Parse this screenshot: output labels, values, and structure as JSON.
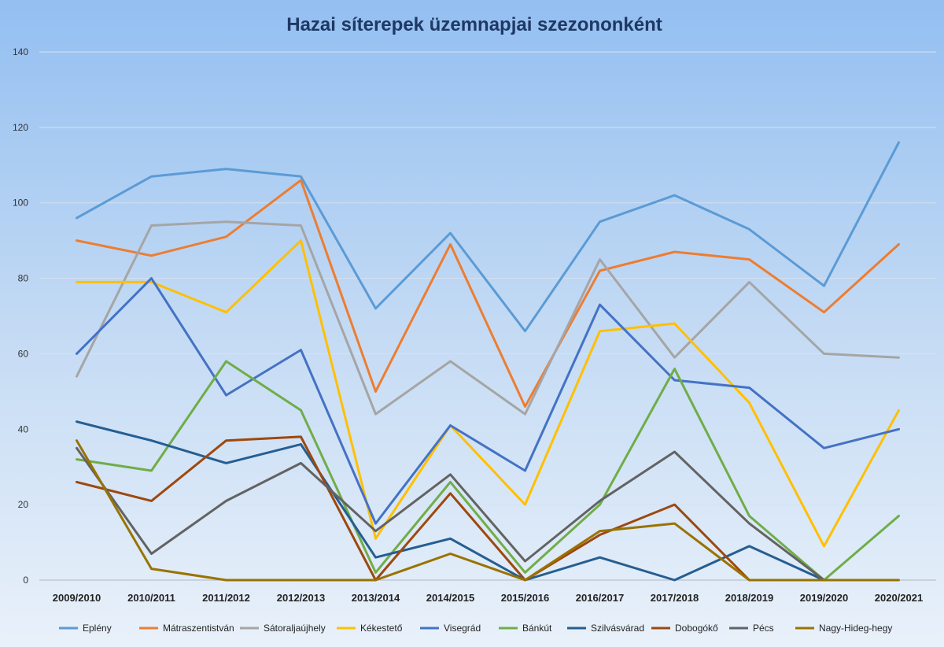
{
  "chart_data": {
    "type": "line",
    "title": "Hazai síterepek üzemnapjai szezononként",
    "xlabel": "",
    "ylabel": "",
    "ylim": [
      0,
      140
    ],
    "yticks": [
      0,
      20,
      40,
      60,
      80,
      100,
      120,
      140
    ],
    "grid": true,
    "legend_position": "bottom",
    "categories": [
      "2009/2010",
      "2010/2011",
      "2011/2012",
      "2012/2013",
      "2013/2014",
      "2014/2015",
      "2015/2016",
      "2016/2017",
      "2017/2018",
      "2018/2019",
      "2019/2020",
      "2020/2021"
    ],
    "series": [
      {
        "name": "Eplény",
        "color": "#5b9bd5",
        "values": [
          96,
          107,
          109,
          107,
          72,
          92,
          66,
          95,
          102,
          93,
          78,
          116
        ]
      },
      {
        "name": "Mátraszentistván",
        "color": "#ed7d31",
        "values": [
          90,
          86,
          91,
          106,
          50,
          89,
          46,
          82,
          87,
          85,
          71,
          89
        ]
      },
      {
        "name": "Sátoraljaújhely",
        "color": "#a5a5a5",
        "values": [
          54,
          94,
          95,
          94,
          44,
          58,
          44,
          85,
          59,
          79,
          60,
          59
        ]
      },
      {
        "name": "Kékestető",
        "color": "#ffc000",
        "values": [
          79,
          79,
          71,
          90,
          11,
          41,
          20,
          66,
          68,
          47,
          9,
          45
        ]
      },
      {
        "name": "Visegrád",
        "color": "#4472c4",
        "values": [
          60,
          80,
          49,
          61,
          15,
          41,
          29,
          73,
          53,
          51,
          35,
          40
        ]
      },
      {
        "name": "Bánkút",
        "color": "#70ad47",
        "values": [
          32,
          29,
          58,
          45,
          2,
          26,
          2,
          20,
          56,
          17,
          0,
          17
        ]
      },
      {
        "name": "Szilvásvárad",
        "color": "#255e91",
        "values": [
          42,
          37,
          31,
          36,
          6,
          11,
          0,
          6,
          0,
          9,
          0,
          null
        ]
      },
      {
        "name": "Dobogókő",
        "color": "#9e480e",
        "values": [
          26,
          21,
          37,
          38,
          0,
          23,
          0,
          12,
          20,
          0,
          null,
          null
        ]
      },
      {
        "name": "Pécs",
        "color": "#636363",
        "values": [
          35,
          7,
          21,
          31,
          13,
          28,
          5,
          21,
          34,
          15,
          0,
          null
        ]
      },
      {
        "name": "Nagy-Hideg-hegy",
        "color": "#997300",
        "values": [
          37,
          3,
          0,
          0,
          0,
          7,
          0,
          13,
          15,
          0,
          0,
          0
        ]
      }
    ]
  }
}
